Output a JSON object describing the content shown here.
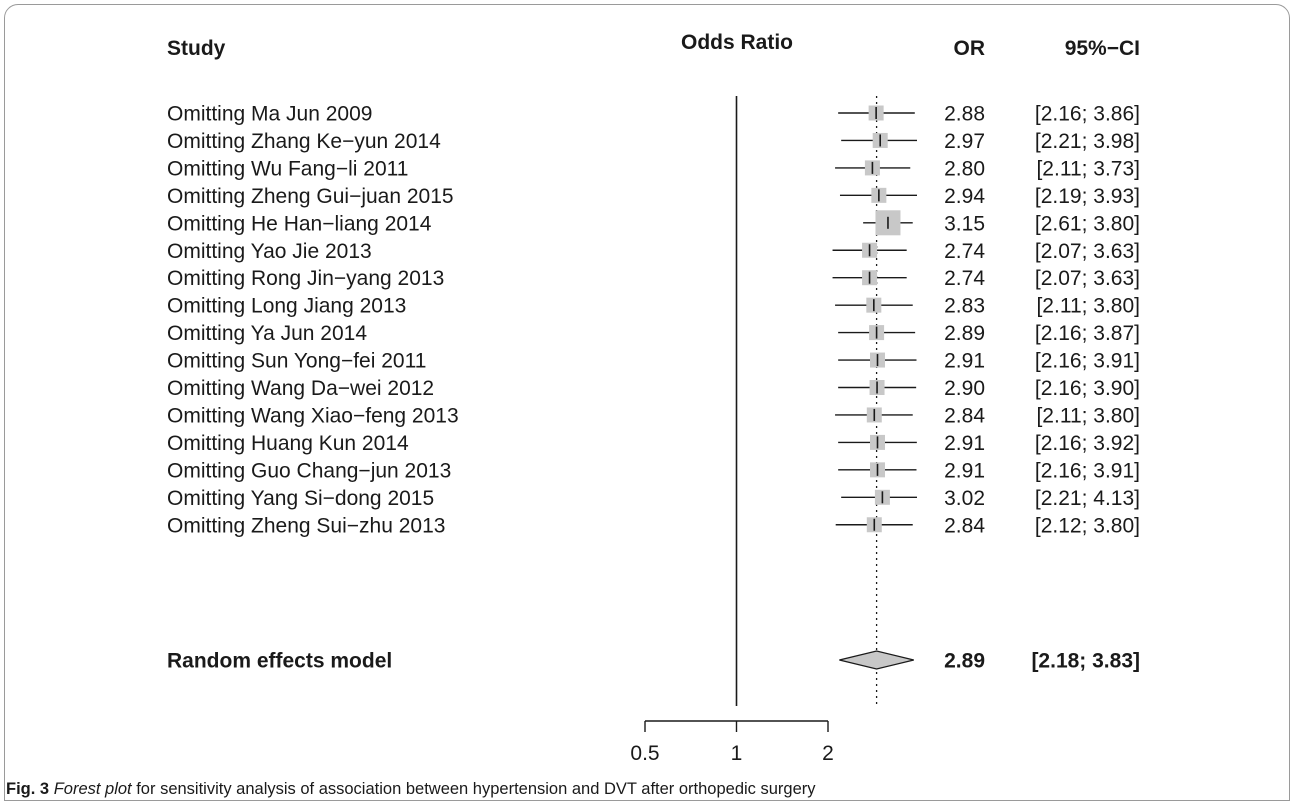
{
  "chart_data": {
    "type": "forest",
    "headers": {
      "study": "Study",
      "plot": "Odds Ratio",
      "or": "OR",
      "ci": "95%−CI"
    },
    "x_scale": "log",
    "xlim": [
      0.5,
      2
    ],
    "x_ticks": [
      "0.5",
      "1",
      "2"
    ],
    "null_line": 1,
    "pooled_line": 2.89,
    "studies": [
      {
        "label": "Omitting Ma Jun 2009",
        "or": 2.88,
        "lower": 2.16,
        "upper": 3.86,
        "or_text": "2.88",
        "ci_text": "[2.16; 3.86]"
      },
      {
        "label": "Omitting Zhang Ke−yun 2014",
        "or": 2.97,
        "lower": 2.21,
        "upper": 3.98,
        "or_text": "2.97",
        "ci_text": "[2.21; 3.98]"
      },
      {
        "label": "Omitting Wu Fang−li 2011",
        "or": 2.8,
        "lower": 2.11,
        "upper": 3.73,
        "or_text": "2.80",
        "ci_text": "[2.11; 3.73]"
      },
      {
        "label": "Omitting Zheng Gui−juan 2015",
        "or": 2.94,
        "lower": 2.19,
        "upper": 3.93,
        "or_text": "2.94",
        "ci_text": "[2.19; 3.93]"
      },
      {
        "label": "Omitting He Han−liang 2014",
        "or": 3.15,
        "lower": 2.61,
        "upper": 3.8,
        "or_text": "3.15",
        "ci_text": "[2.61; 3.80]"
      },
      {
        "label": "Omitting Yao Jie 2013",
        "or": 2.74,
        "lower": 2.07,
        "upper": 3.63,
        "or_text": "2.74",
        "ci_text": "[2.07; 3.63]"
      },
      {
        "label": "Omitting Rong Jin−yang 2013",
        "or": 2.74,
        "lower": 2.07,
        "upper": 3.63,
        "or_text": "2.74",
        "ci_text": "[2.07; 3.63]"
      },
      {
        "label": "Omitting Long Jiang 2013",
        "or": 2.83,
        "lower": 2.11,
        "upper": 3.8,
        "or_text": "2.83",
        "ci_text": "[2.11; 3.80]"
      },
      {
        "label": "Omitting Ya Jun 2014",
        "or": 2.89,
        "lower": 2.16,
        "upper": 3.87,
        "or_text": "2.89",
        "ci_text": "[2.16; 3.87]"
      },
      {
        "label": "Omitting Sun Yong−fei 2011",
        "or": 2.91,
        "lower": 2.16,
        "upper": 3.91,
        "or_text": "2.91",
        "ci_text": "[2.16; 3.91]"
      },
      {
        "label": "Omitting Wang Da−wei 2012",
        "or": 2.9,
        "lower": 2.16,
        "upper": 3.9,
        "or_text": "2.90",
        "ci_text": "[2.16; 3.90]"
      },
      {
        "label": "Omitting Wang Xiao−feng 2013",
        "or": 2.84,
        "lower": 2.11,
        "upper": 3.8,
        "or_text": "2.84",
        "ci_text": "[2.11; 3.80]"
      },
      {
        "label": "Omitting Huang Kun 2014",
        "or": 2.91,
        "lower": 2.16,
        "upper": 3.92,
        "or_text": "2.91",
        "ci_text": "[2.16; 3.92]"
      },
      {
        "label": "Omitting Guo Chang−jun 2013",
        "or": 2.91,
        "lower": 2.16,
        "upper": 3.91,
        "or_text": "2.91",
        "ci_text": "[2.16; 3.91]"
      },
      {
        "label": "Omitting Yang Si−dong 2015",
        "or": 3.02,
        "lower": 2.21,
        "upper": 4.13,
        "or_text": "3.02",
        "ci_text": "[2.21; 4.13]"
      },
      {
        "label": "Omitting Zheng Sui−zhu 2013",
        "or": 2.84,
        "lower": 2.12,
        "upper": 3.8,
        "or_text": "2.84",
        "ci_text": "[2.12; 3.80]"
      }
    ],
    "summary": {
      "label": "Random effects model",
      "or": 2.89,
      "lower": 2.18,
      "upper": 3.83,
      "or_text": "2.89",
      "ci_text": "[2.18; 3.83]"
    },
    "box_fill": "#c8c8c8",
    "diamond_fill": "#c8c8c8"
  },
  "caption": {
    "label": "Fig. 3",
    "italic": "Forest plot",
    "rest": " for sensitivity analysis of association between hypertension and DVT after orthopedic surgery"
  }
}
